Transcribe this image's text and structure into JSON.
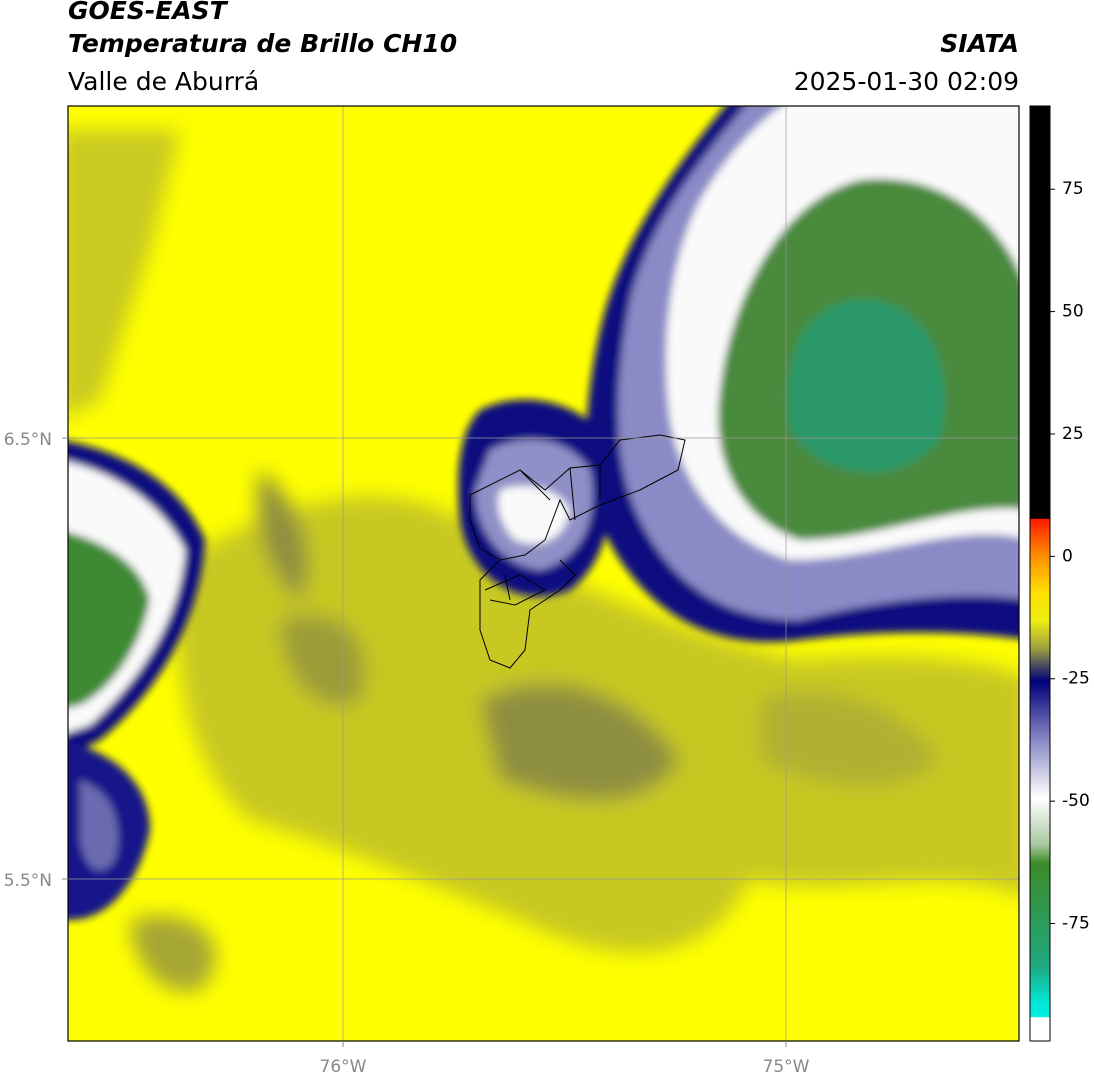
{
  "header": {
    "title": "GOES-EAST",
    "subtitle": "Temperatura de Brillo CH10",
    "region": "Valle de Aburrá",
    "source": "SIATA",
    "timestamp": "2025-01-30 02:09"
  },
  "map": {
    "lat_labels": [
      "6.5°N",
      "5.5°N"
    ],
    "lon_labels": [
      "76°W",
      "75°W"
    ]
  },
  "colorbar": {
    "lim": [
      -99,
      92
    ],
    "ticks": [
      75,
      50,
      25,
      0,
      -25,
      -50,
      -75
    ]
  }
}
